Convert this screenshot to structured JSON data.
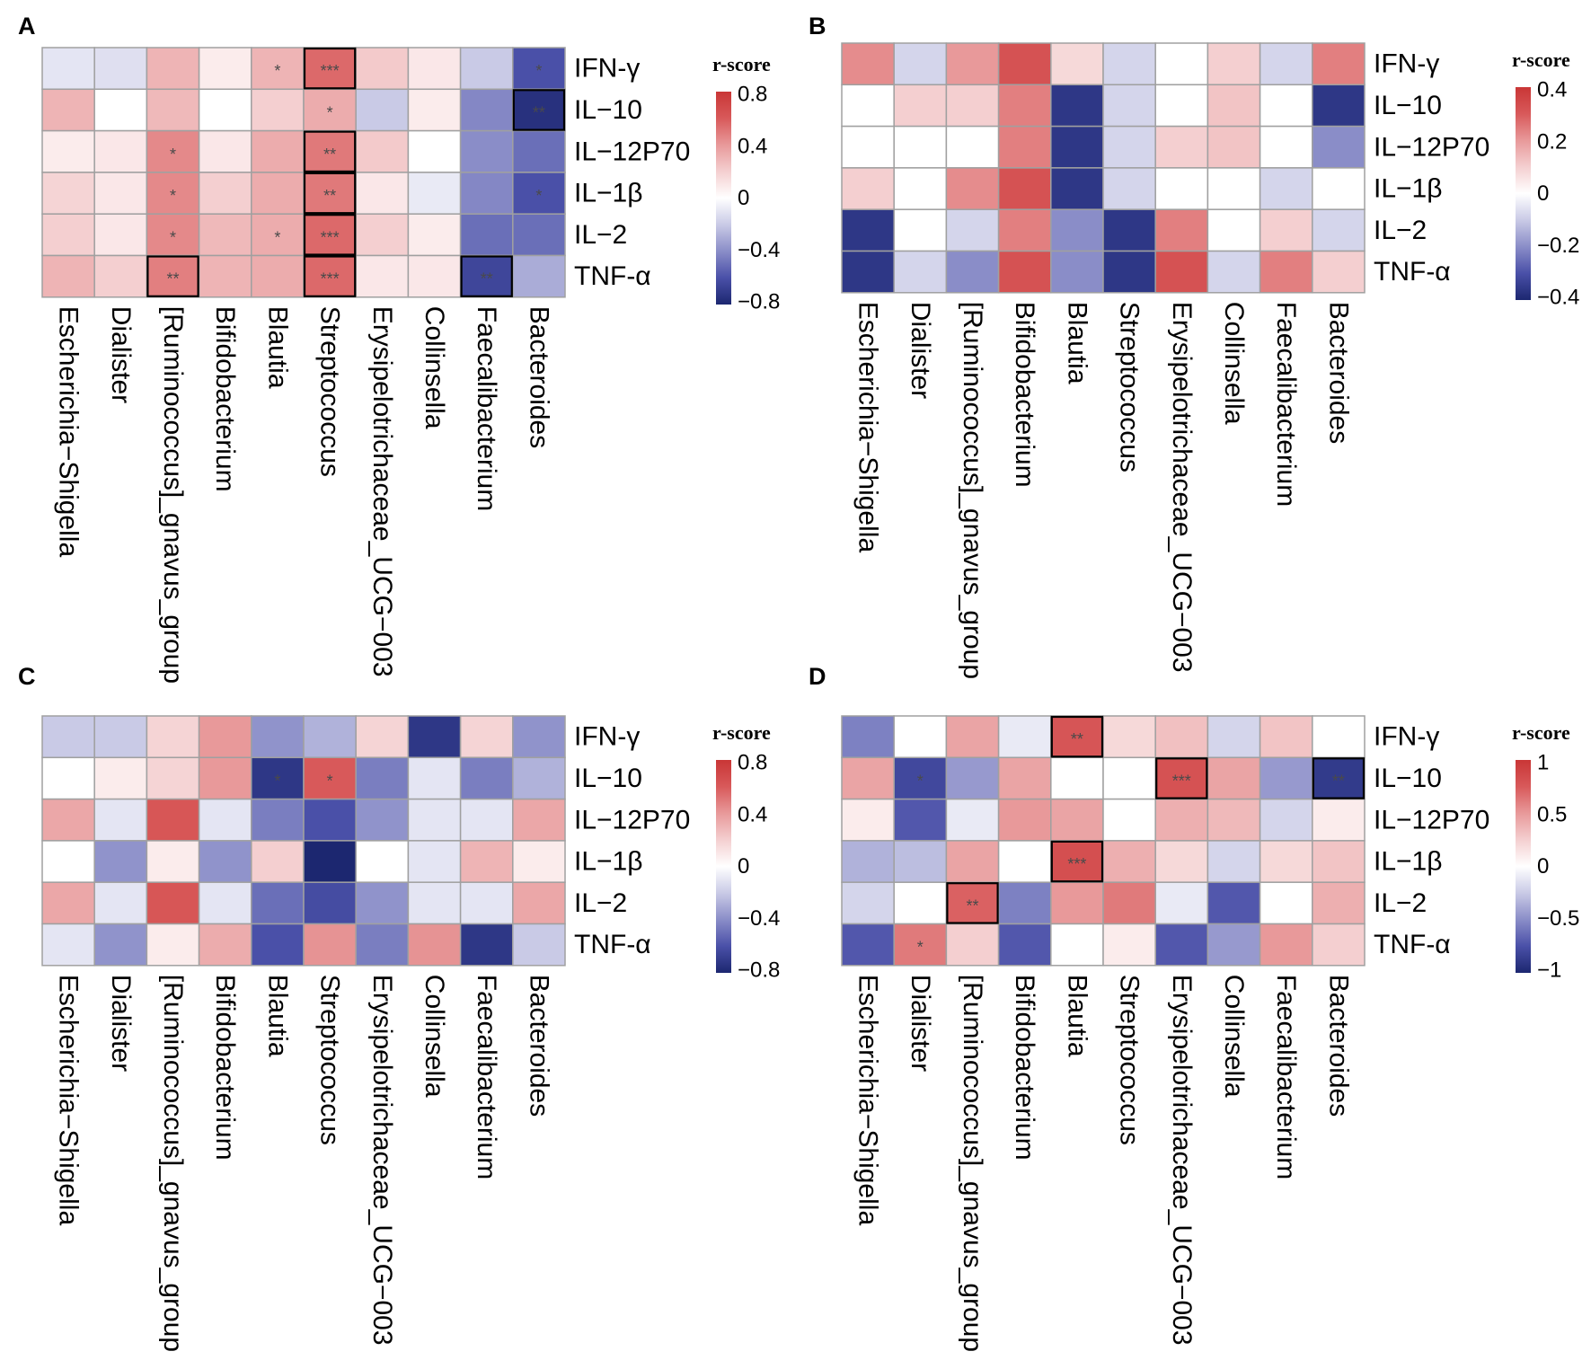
{
  "palette": {
    "positive": [
      "#ffffff",
      "#f4cfd0",
      "#e8999a",
      "#d8595a",
      "#c93636"
    ],
    "negative": [
      "#ffffff",
      "#c9cae6",
      "#8a8dc8",
      "#4a50a8",
      "#1c2770"
    ],
    "cell_border": "#a0a0a0",
    "highlight_border": "#000000",
    "significance_text": "#4a4a4a"
  },
  "chart_data": [
    {
      "panel": "A",
      "type": "heatmap",
      "rows": [
        "IFN-γ",
        "IL−10",
        "IL−12P70",
        "IL−1β",
        "IL−2",
        "TNF-α"
      ],
      "columns": [
        "Escherichia−Shigella",
        "Dialister",
        "[Ruminococcus]_gnavus_group",
        "Bifidobacterium",
        "Blautia",
        "Streptococcus",
        "Erysipelotrichaceae_UCG−003",
        "Collinsella",
        "Faecalibacterium",
        "Bacteroides"
      ],
      "values": [
        [
          -0.1,
          -0.12,
          0.3,
          0.08,
          0.3,
          0.55,
          0.22,
          0.1,
          -0.2,
          -0.6
        ],
        [
          0.3,
          0,
          0.28,
          0,
          0.2,
          0.33,
          -0.2,
          0.08,
          -0.42,
          -0.75
        ],
        [
          0.08,
          0.1,
          0.45,
          0.1,
          0.33,
          0.5,
          0.22,
          0,
          -0.4,
          -0.5
        ],
        [
          0.18,
          0.1,
          0.45,
          0.2,
          0.33,
          0.5,
          0.1,
          -0.08,
          -0.42,
          -0.6
        ],
        [
          0.2,
          0.1,
          0.45,
          0.28,
          0.33,
          0.55,
          0.2,
          0.08,
          -0.5,
          -0.5
        ],
        [
          0.3,
          0.2,
          0.48,
          0.3,
          0.33,
          0.55,
          0.1,
          0.1,
          -0.65,
          -0.3
        ]
      ],
      "significance": [
        [
          "",
          "",
          "",
          "",
          "*",
          "***",
          "",
          "",
          "",
          "*"
        ],
        [
          "",
          "",
          "",
          "",
          "",
          "*",
          "",
          "",
          "",
          "**"
        ],
        [
          "",
          "",
          "*",
          "",
          "",
          "**",
          "",
          "",
          "",
          ""
        ],
        [
          "",
          "",
          "*",
          "",
          "",
          "**",
          "",
          "",
          "",
          "*"
        ],
        [
          "",
          "",
          "*",
          "",
          "*",
          "***",
          "",
          "",
          "",
          ""
        ],
        [
          "",
          "",
          "**",
          "",
          "",
          "***",
          "",
          "",
          "**",
          ""
        ]
      ],
      "highlighted_cells": [
        [
          0,
          5
        ],
        [
          1,
          9
        ],
        [
          2,
          5
        ],
        [
          3,
          5
        ],
        [
          4,
          5
        ],
        [
          5,
          2
        ],
        [
          5,
          5
        ],
        [
          5,
          8
        ]
      ],
      "colorbar": {
        "title": "r-score",
        "range": [
          -0.8,
          0.8
        ],
        "ticks": [
          0.8,
          0.4,
          0,
          -0.4,
          -0.8
        ],
        "tick_labels": [
          "0.8",
          "0.4",
          "0",
          "−0.4",
          "−0.8"
        ]
      }
    },
    {
      "panel": "B",
      "type": "heatmap",
      "rows": [
        "IFN-γ",
        "IL−10",
        "IL−12P70",
        "IL−1β",
        "IL−2",
        "TNF-α"
      ],
      "columns": [
        "Escherichia−Shigella",
        "Dialister",
        "[Ruminococcus]_gnavus_group",
        "Bifidobacterium",
        "Blautia",
        "Streptococcus",
        "Erysipelotrichaceae_UCG−003",
        "Collinsella",
        "Faecalibacterium",
        "Bacteroides"
      ],
      "values": [
        [
          0.22,
          -0.08,
          0.2,
          0.32,
          0.08,
          -0.08,
          0,
          0.1,
          -0.08,
          0.24
        ],
        [
          0,
          0.1,
          0.1,
          0.24,
          -0.36,
          -0.08,
          0,
          0.12,
          0,
          -0.36
        ],
        [
          0,
          0,
          0,
          0.24,
          -0.36,
          -0.08,
          0.1,
          0.12,
          0,
          -0.2
        ],
        [
          0.1,
          0,
          0.22,
          0.32,
          -0.36,
          -0.08,
          0,
          0,
          -0.08,
          0
        ],
        [
          -0.36,
          0,
          -0.08,
          0.24,
          -0.2,
          -0.36,
          0.24,
          0,
          0.1,
          -0.08
        ],
        [
          -0.36,
          -0.08,
          -0.2,
          0.32,
          -0.2,
          -0.36,
          0.32,
          -0.08,
          0.24,
          0.1
        ]
      ],
      "significance": [
        [
          "",
          "",
          "",
          "",
          "",
          "",
          "",
          "",
          "",
          ""
        ],
        [
          "",
          "",
          "",
          "",
          "",
          "",
          "",
          "",
          "",
          ""
        ],
        [
          "",
          "",
          "",
          "",
          "",
          "",
          "",
          "",
          "",
          ""
        ],
        [
          "",
          "",
          "",
          "",
          "",
          "",
          "",
          "",
          "",
          ""
        ],
        [
          "",
          "",
          "",
          "",
          "",
          "",
          "",
          "",
          "",
          ""
        ],
        [
          "",
          "",
          "",
          "",
          "",
          "",
          "",
          "",
          "",
          ""
        ]
      ],
      "highlighted_cells": [],
      "colorbar": {
        "title": "r-score",
        "range": [
          -0.4,
          0.4
        ],
        "ticks": [
          0.4,
          0.2,
          0,
          -0.2,
          -0.4
        ],
        "tick_labels": [
          "0.4",
          "0.2",
          "0",
          "−0.2",
          "−0.4"
        ]
      }
    },
    {
      "panel": "C",
      "type": "heatmap",
      "rows": [
        "IFN-γ",
        "IL−10",
        "IL−12P70",
        "IL−1β",
        "IL−2",
        "TNF-α"
      ],
      "columns": [
        "Escherichia−Shigella",
        "Dialister",
        "[Ruminococcus]_gnavus_group",
        "Bifidobacterium",
        "Blautia",
        "Streptococcus",
        "Erysipelotrichaceae_UCG−003",
        "Collinsella",
        "Faecalibacterium",
        "Bacteroides"
      ],
      "values": [
        [
          -0.2,
          -0.2,
          0.18,
          0.4,
          -0.38,
          -0.28,
          0.18,
          -0.72,
          0.18,
          -0.38
        ],
        [
          0,
          0.08,
          0.18,
          0.4,
          -0.72,
          0.6,
          -0.45,
          -0.1,
          -0.45,
          -0.28
        ],
        [
          0.35,
          -0.1,
          0.62,
          -0.1,
          -0.45,
          -0.6,
          -0.38,
          -0.1,
          -0.1,
          0.35
        ],
        [
          0,
          -0.38,
          0.08,
          -0.38,
          0.2,
          -0.8,
          0,
          -0.1,
          0.3,
          0.08
        ],
        [
          0.35,
          -0.1,
          0.62,
          -0.1,
          -0.5,
          -0.62,
          -0.38,
          -0.1,
          -0.1,
          0.35
        ],
        [
          -0.1,
          -0.38,
          0.08,
          0.33,
          -0.6,
          0.42,
          -0.45,
          0.42,
          -0.72,
          -0.2
        ]
      ],
      "significance": [
        [
          "",
          "",
          "",
          "",
          "",
          "",
          "",
          "",
          "",
          ""
        ],
        [
          "",
          "",
          "",
          "",
          "*",
          "*",
          "",
          "",
          "",
          ""
        ],
        [
          "",
          "",
          "",
          "",
          "",
          "",
          "",
          "",
          "",
          ""
        ],
        [
          "",
          "",
          "",
          "",
          "",
          "",
          "",
          "",
          "",
          ""
        ],
        [
          "",
          "",
          "",
          "",
          "",
          "",
          "",
          "",
          "",
          ""
        ],
        [
          "",
          "",
          "",
          "",
          "",
          "",
          "",
          "",
          "",
          ""
        ]
      ],
      "highlighted_cells": [],
      "colorbar": {
        "title": "r-score",
        "range": [
          -0.8,
          0.8
        ],
        "ticks": [
          0.8,
          0.4,
          0,
          -0.4,
          -0.8
        ],
        "tick_labels": [
          "0.8",
          "0.4",
          "0",
          "−0.4",
          "−0.8"
        ]
      }
    },
    {
      "panel": "D",
      "type": "heatmap",
      "rows": [
        "IFN-γ",
        "IL−10",
        "IL−12P70",
        "IL−1β",
        "IL−2",
        "TNF-α"
      ],
      "columns": [
        "Escherichia−Shigella",
        "Dialister",
        "[Ruminococcus]_gnavus_group",
        "Bifidobacterium",
        "Blautia",
        "Streptococcus",
        "Erysipelotrichaceae_UCG−003",
        "Collinsella",
        "Faecalibacterium",
        "Bacteroides"
      ],
      "values": [
        [
          -0.55,
          0,
          0.45,
          -0.1,
          0.78,
          0.2,
          0.32,
          -0.2,
          0.3,
          0
        ],
        [
          0.45,
          -0.8,
          -0.45,
          0.45,
          0,
          0,
          0.8,
          0.45,
          -0.45,
          -0.88
        ],
        [
          0.1,
          -0.72,
          -0.1,
          0.5,
          0.45,
          0,
          0.4,
          0.35,
          -0.2,
          0.1
        ],
        [
          -0.35,
          -0.3,
          0.45,
          0,
          0.82,
          0.4,
          0.2,
          -0.2,
          0.2,
          0.3
        ],
        [
          -0.2,
          0,
          0.72,
          -0.55,
          0.5,
          0.62,
          -0.1,
          -0.72,
          0,
          0.4
        ],
        [
          -0.72,
          0.62,
          0.25,
          -0.72,
          0,
          0.1,
          -0.72,
          -0.45,
          0.5,
          0.25
        ]
      ],
      "significance": [
        [
          "",
          "",
          "",
          "",
          "**",
          "",
          "",
          "",
          "",
          ""
        ],
        [
          "",
          "*",
          "",
          "",
          "",
          "",
          "***",
          "",
          "",
          "**"
        ],
        [
          "",
          "",
          "",
          "",
          "",
          "",
          "",
          "",
          "",
          ""
        ],
        [
          "",
          "",
          "",
          "",
          "***",
          "",
          "",
          "",
          "",
          ""
        ],
        [
          "",
          "",
          "**",
          "",
          "",
          "",
          "",
          "",
          "",
          ""
        ],
        [
          "",
          "*",
          "",
          "",
          "",
          "",
          "",
          "",
          "",
          ""
        ]
      ],
      "highlighted_cells": [
        [
          0,
          4
        ],
        [
          1,
          6
        ],
        [
          1,
          9
        ],
        [
          3,
          4
        ],
        [
          4,
          2
        ]
      ],
      "colorbar": {
        "title": "r-score",
        "range": [
          -1,
          1
        ],
        "ticks": [
          1,
          0.5,
          0,
          -0.5,
          -1
        ],
        "tick_labels": [
          "1",
          "0.5",
          "0",
          "−0.5",
          "−1"
        ]
      }
    }
  ]
}
